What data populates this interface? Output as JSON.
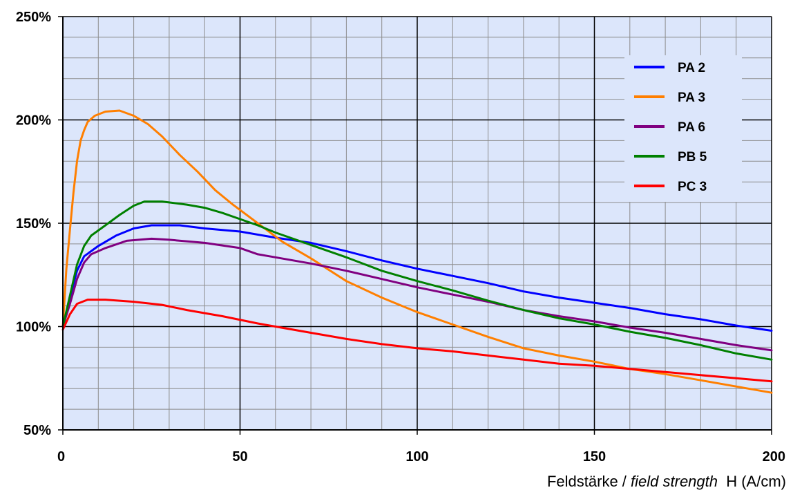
{
  "chart_data": {
    "type": "line",
    "x_axis": {
      "label_prefix": "Feldstärke /",
      "label_italic": "field strength",
      "label_suffix": "H (A/cm)",
      "min": 0,
      "max": 200,
      "major_ticks": [
        0,
        50,
        100,
        150,
        200
      ],
      "tick_labels": [
        "0",
        "50",
        "100",
        "150",
        "200"
      ]
    },
    "y_axis": {
      "min": 50,
      "max": 250,
      "major_ticks": [
        50,
        100,
        150,
        200,
        250
      ],
      "tick_labels": [
        "50%",
        "100%",
        "150%",
        "200%",
        "250%"
      ]
    },
    "grid": true,
    "legend_position": "top-right",
    "series": [
      {
        "name": "PA 2",
        "color": "#0000ff",
        "points": [
          [
            0,
            100
          ],
          [
            2,
            114
          ],
          [
            4,
            127
          ],
          [
            6,
            134
          ],
          [
            10,
            139
          ],
          [
            15,
            144
          ],
          [
            20,
            147.5
          ],
          [
            25,
            149
          ],
          [
            33,
            149
          ],
          [
            40,
            147.5
          ],
          [
            50,
            146
          ],
          [
            60,
            143
          ],
          [
            70,
            140.5
          ],
          [
            80,
            136.5
          ],
          [
            90,
            132
          ],
          [
            100,
            128
          ],
          [
            110,
            124.5
          ],
          [
            120,
            121
          ],
          [
            130,
            117
          ],
          [
            140,
            114
          ],
          [
            150,
            111.5
          ],
          [
            160,
            109
          ],
          [
            170,
            106
          ],
          [
            180,
            103.5
          ],
          [
            190,
            100.5
          ],
          [
            200,
            98
          ]
        ]
      },
      {
        "name": "PA 3",
        "color": "#ff7f00",
        "points": [
          [
            0,
            100
          ],
          [
            1,
            128
          ],
          [
            2,
            147
          ],
          [
            3,
            165
          ],
          [
            4,
            180
          ],
          [
            5,
            190
          ],
          [
            6,
            195
          ],
          [
            7,
            199
          ],
          [
            9,
            202
          ],
          [
            12,
            204
          ],
          [
            16,
            204.5
          ],
          [
            20,
            202
          ],
          [
            24,
            198
          ],
          [
            28,
            192
          ],
          [
            33,
            183
          ],
          [
            38,
            175
          ],
          [
            43,
            166
          ],
          [
            48,
            159
          ],
          [
            55,
            150
          ],
          [
            62,
            141
          ],
          [
            70,
            133
          ],
          [
            80,
            122
          ],
          [
            90,
            114
          ],
          [
            100,
            107
          ],
          [
            110,
            101
          ],
          [
            120,
            95
          ],
          [
            130,
            89.5
          ],
          [
            140,
            86
          ],
          [
            150,
            83
          ],
          [
            160,
            79.5
          ],
          [
            170,
            77
          ],
          [
            180,
            74
          ],
          [
            190,
            71
          ],
          [
            200,
            68
          ]
        ]
      },
      {
        "name": "PA 6",
        "color": "#800080",
        "points": [
          [
            0,
            100
          ],
          [
            2,
            111
          ],
          [
            4,
            123
          ],
          [
            6,
            131
          ],
          [
            8,
            135
          ],
          [
            12,
            138
          ],
          [
            18,
            141.5
          ],
          [
            25,
            142.5
          ],
          [
            30,
            142
          ],
          [
            40,
            140.5
          ],
          [
            50,
            138
          ],
          [
            55,
            135
          ],
          [
            60,
            133.5
          ],
          [
            70,
            130.5
          ],
          [
            80,
            127
          ],
          [
            90,
            123
          ],
          [
            100,
            119
          ],
          [
            110,
            115.5
          ],
          [
            120,
            112
          ],
          [
            130,
            108
          ],
          [
            140,
            105
          ],
          [
            150,
            102.5
          ],
          [
            160,
            99.5
          ],
          [
            170,
            97
          ],
          [
            180,
            94
          ],
          [
            190,
            91
          ],
          [
            200,
            88.5
          ]
        ]
      },
      {
        "name": "PB 5",
        "color": "#008000",
        "points": [
          [
            0,
            100
          ],
          [
            2,
            115
          ],
          [
            4,
            130
          ],
          [
            6,
            139
          ],
          [
            8,
            144
          ],
          [
            12,
            149
          ],
          [
            16,
            154
          ],
          [
            20,
            158.5
          ],
          [
            23,
            160.5
          ],
          [
            28,
            160.5
          ],
          [
            35,
            159
          ],
          [
            40,
            157.5
          ],
          [
            45,
            155
          ],
          [
            50,
            152
          ],
          [
            55,
            149
          ],
          [
            60,
            145.5
          ],
          [
            70,
            139.5
          ],
          [
            80,
            133.5
          ],
          [
            90,
            127
          ],
          [
            100,
            122
          ],
          [
            110,
            117.5
          ],
          [
            120,
            112.5
          ],
          [
            130,
            108
          ],
          [
            140,
            104
          ],
          [
            150,
            101
          ],
          [
            160,
            97.5
          ],
          [
            170,
            94.5
          ],
          [
            180,
            91
          ],
          [
            190,
            87
          ],
          [
            200,
            84
          ]
        ]
      },
      {
        "name": "PC 3",
        "color": "#ff0000",
        "points": [
          [
            0,
            98.5
          ],
          [
            2,
            106
          ],
          [
            4,
            111
          ],
          [
            7,
            113
          ],
          [
            12,
            113
          ],
          [
            20,
            112
          ],
          [
            28,
            110.5
          ],
          [
            35,
            108
          ],
          [
            45,
            105
          ],
          [
            55,
            101.5
          ],
          [
            60,
            100
          ],
          [
            70,
            97
          ],
          [
            80,
            94
          ],
          [
            90,
            91.5
          ],
          [
            100,
            89.5
          ],
          [
            110,
            88
          ],
          [
            120,
            86
          ],
          [
            125,
            85
          ],
          [
            130,
            84
          ],
          [
            140,
            82
          ],
          [
            150,
            81
          ],
          [
            160,
            79.5
          ],
          [
            170,
            78
          ],
          [
            180,
            76.5
          ],
          [
            190,
            75
          ],
          [
            200,
            73.5
          ]
        ]
      }
    ]
  }
}
